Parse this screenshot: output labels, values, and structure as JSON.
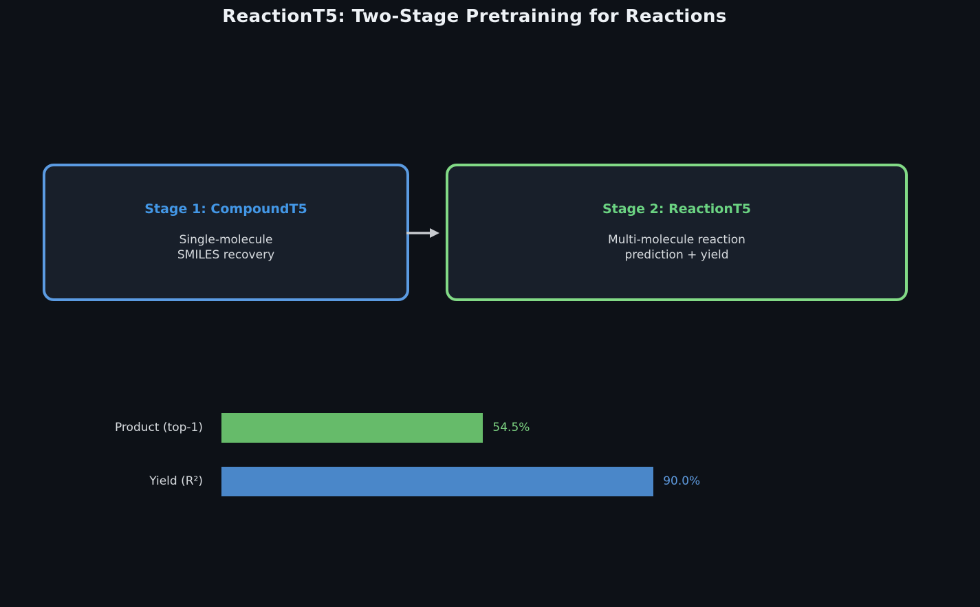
{
  "page": {
    "title": "ReactionT5: Two-Stage Pretraining for Reactions",
    "background": "#0d1117",
    "title_color": "#edf1f5",
    "text_color": "#d6dade"
  },
  "stages": [
    {
      "title": "Stage 1: CompoundT5",
      "description": [
        "Single-molecule",
        "SMILES recovery"
      ],
      "border_color": "#5b9be2",
      "title_color": "#4397e6",
      "fill": "#181f2a"
    },
    {
      "title": "Stage 2: ReactionT5",
      "description": [
        "Multi-molecule reaction",
        "prediction + yield"
      ],
      "border_color": "#82da86",
      "title_color": "#6bd382",
      "fill": "#181f2a"
    }
  ],
  "arrow": {
    "color": "#c8cbd0"
  },
  "chart_data": {
    "type": "bar",
    "orientation": "horizontal",
    "categories": [
      "Product (top-1)",
      "Yield (R²)"
    ],
    "values": [
      54.5,
      90.0
    ],
    "value_labels": [
      "54.5%",
      "90.0%"
    ],
    "bar_colors": [
      "#66bb6a",
      "#4a87c9"
    ],
    "value_label_colors": [
      "#7dd382",
      "#5e9ade"
    ],
    "category_label_color": "#d6dade",
    "xlim": [
      0,
      100
    ],
    "grid": false,
    "legend": false
  }
}
